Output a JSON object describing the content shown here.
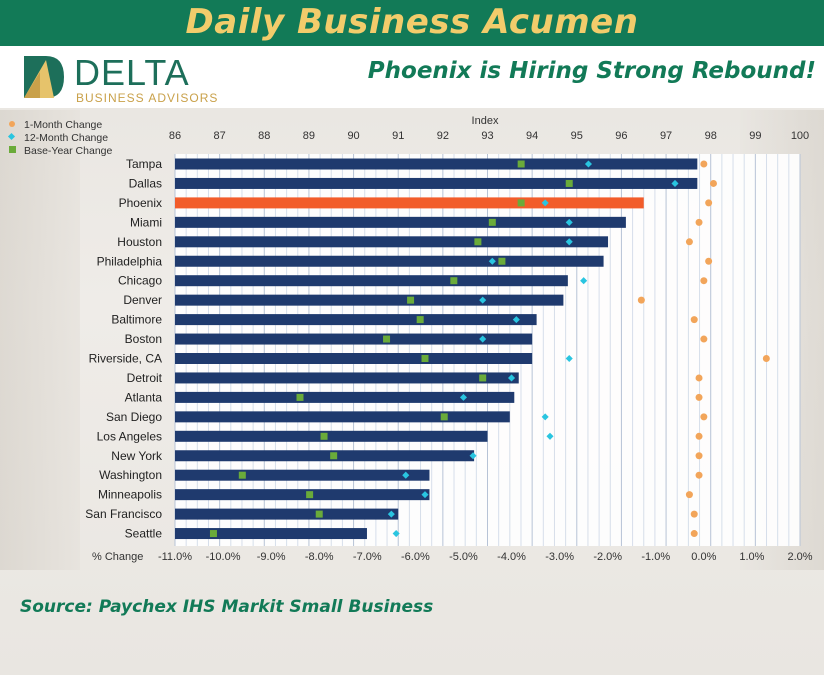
{
  "header": {
    "title": "Daily Business Acumen"
  },
  "logo": {
    "name": "DELTA",
    "subtitle": "BUSINESS ADVISORS"
  },
  "headline": "Phoenix is Hiring Strong Rebound!",
  "source": "Source: Paychex IHS Markit Small Business",
  "colors": {
    "bar": "#1f3a6e",
    "highlight": "#f25c2a",
    "one_month": "#f2a55a",
    "twelve_month": "#29c5e0",
    "base_year": "#6aab3a",
    "header_bg": "#127a57",
    "header_text": "#f2cc6b"
  },
  "chart_data": {
    "type": "bar",
    "orientation": "horizontal",
    "title": "",
    "index_axis": {
      "label": "Index",
      "range": [
        86,
        100
      ],
      "ticks": [
        86,
        87,
        88,
        89,
        90,
        91,
        92,
        93,
        94,
        95,
        96,
        97,
        98,
        99,
        100
      ]
    },
    "change_axis": {
      "label": "% Change",
      "range": [
        -11,
        2
      ],
      "ticks": [
        -11,
        -10,
        -9,
        -8,
        -7,
        -6,
        -5,
        -4,
        -3,
        -2,
        -1,
        0,
        1,
        2
      ],
      "tick_labels": [
        "-11.0%",
        "-10.0%",
        "-9.0%",
        "-8.0%",
        "-7.0%",
        "-6.0%",
        "-5.0%",
        "-4.0%",
        "-3.0%",
        "-2.0%",
        "-1.0%",
        "0.0%",
        "1.0%",
        "2.0%"
      ]
    },
    "legend": {
      "placement": "top-left",
      "entries": [
        "1-Month Change",
        "12-Month Change",
        "Base-Year Change"
      ]
    },
    "highlight": "Phoenix",
    "categories": [
      "Tampa",
      "Dallas",
      "Phoenix",
      "Miami",
      "Houston",
      "Philadelphia",
      "Chicago",
      "Denver",
      "Baltimore",
      "Boston",
      "Riverside, CA",
      "Detroit",
      "Atlanta",
      "San Diego",
      "Los Angeles",
      "New York",
      "Washington",
      "Minneapolis",
      "San Francisco",
      "Seattle"
    ],
    "index_values": [
      97.7,
      97.7,
      96.5,
      96.1,
      95.7,
      95.6,
      94.8,
      94.7,
      94.1,
      94.0,
      94.0,
      93.7,
      93.6,
      93.5,
      93.0,
      92.7,
      91.7,
      91.7,
      91.0,
      90.3
    ],
    "one_month_change": [
      0.0,
      0.2,
      0.1,
      -0.1,
      -0.3,
      0.1,
      0.0,
      -1.3,
      -0.2,
      0.0,
      1.3,
      -0.1,
      -0.1,
      0.0,
      -0.1,
      -0.1,
      -0.1,
      -0.3,
      -0.2,
      -0.2
    ],
    "twelve_month_change": [
      -2.4,
      -0.6,
      -3.3,
      -2.8,
      -2.8,
      -4.4,
      -2.5,
      -4.6,
      -3.9,
      -4.6,
      -2.8,
      -4.0,
      -5.0,
      -3.3,
      -3.2,
      -4.8,
      -6.2,
      -5.8,
      -6.5,
      -6.4
    ],
    "base_year_change": [
      -3.8,
      -2.8,
      -3.8,
      -4.4,
      -4.7,
      -4.2,
      -5.2,
      -6.1,
      -5.9,
      -6.6,
      -5.8,
      -4.6,
      -8.4,
      -5.4,
      -7.9,
      -7.7,
      -9.6,
      -8.2,
      -8.0,
      -10.2
    ]
  }
}
